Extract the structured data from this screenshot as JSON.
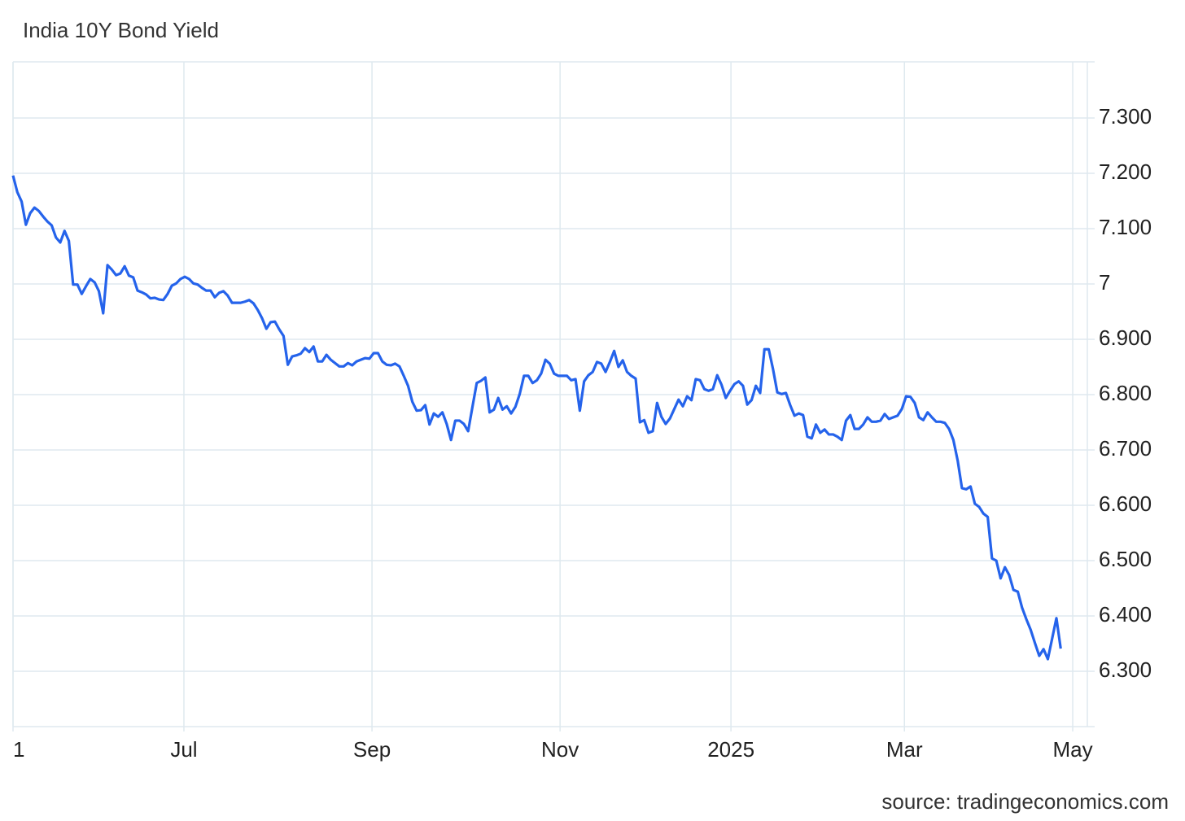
{
  "chart_data": {
    "type": "line",
    "title": "India 10Y Bond Yield",
    "source": "source: tradingeconomics.com",
    "color": "#2563eb",
    "grid": true,
    "y_axis_side": "right",
    "xlim": [
      0,
      250.2
    ],
    "xticks": [
      {
        "value": 0,
        "label": "1"
      },
      {
        "value": 39.8,
        "label": "Jul"
      },
      {
        "value": 83.6,
        "label": "Sep"
      },
      {
        "value": 127.4,
        "label": "Nov"
      },
      {
        "value": 167.2,
        "label": "2025"
      },
      {
        "value": 207.6,
        "label": "Mar"
      },
      {
        "value": 246.8,
        "label": "May"
      }
    ],
    "ylim": [
      6.2,
      7.4
    ],
    "yticks": [
      {
        "value": 6.3,
        "label": "6.300"
      },
      {
        "value": 6.4,
        "label": "6.400"
      },
      {
        "value": 6.5,
        "label": "6.500"
      },
      {
        "value": 6.6,
        "label": "6.600"
      },
      {
        "value": 6.7,
        "label": "6.700"
      },
      {
        "value": 6.8,
        "label": "6.800"
      },
      {
        "value": 6.9,
        "label": "6.900"
      },
      7,
      {
        "value": 7.1,
        "label": "7.100"
      },
      {
        "value": 7.2,
        "label": "7.200"
      },
      {
        "value": 7.3,
        "label": "7.300"
      }
    ],
    "values": [
      7.196,
      7.166,
      7.149,
      7.107,
      7.128,
      7.138,
      7.132,
      7.122,
      7.113,
      7.106,
      7.084,
      7.075,
      7.096,
      7.078,
      6.999,
      6.999,
      6.982,
      6.996,
      7.009,
      7.003,
      6.987,
      6.947,
      7.034,
      7.026,
      7.016,
      7.019,
      7.032,
      7.015,
      7.012,
      6.988,
      6.985,
      6.981,
      6.974,
      6.975,
      6.972,
      6.971,
      6.982,
      6.997,
      7.001,
      7.009,
      7.013,
      7.009,
      7.001,
      6.999,
      6.993,
      6.988,
      6.988,
      6.976,
      6.984,
      6.987,
      6.979,
      6.966,
      6.966,
      6.966,
      6.968,
      6.971,
      6.965,
      6.953,
      6.938,
      6.919,
      6.931,
      6.932,
      6.918,
      6.906,
      6.854,
      6.869,
      6.871,
      6.874,
      6.884,
      6.877,
      6.887,
      6.86,
      6.86,
      6.872,
      6.863,
      6.857,
      6.851,
      6.851,
      6.857,
      6.853,
      6.86,
      6.863,
      6.866,
      6.865,
      6.875,
      6.875,
      6.86,
      6.854,
      6.853,
      6.856,
      6.851,
      6.834,
      6.816,
      6.787,
      6.771,
      6.772,
      6.781,
      6.746,
      6.766,
      6.76,
      6.768,
      6.747,
      6.718,
      6.753,
      6.753,
      6.747,
      6.734,
      6.778,
      6.821,
      6.825,
      6.831,
      6.768,
      6.773,
      6.794,
      6.773,
      6.779,
      6.766,
      6.778,
      6.801,
      6.834,
      6.834,
      6.821,
      6.826,
      6.838,
      6.863,
      6.856,
      6.838,
      6.834,
      6.834,
      6.834,
      6.826,
      6.828,
      6.771,
      6.824,
      6.835,
      6.841,
      6.859,
      6.856,
      6.841,
      6.859,
      6.879,
      6.85,
      6.862,
      6.841,
      6.834,
      6.829,
      6.75,
      6.754,
      6.731,
      6.734,
      6.785,
      6.76,
      6.747,
      6.757,
      6.774,
      6.791,
      6.779,
      6.797,
      6.79,
      6.828,
      6.826,
      6.81,
      6.807,
      6.81,
      6.835,
      6.818,
      6.794,
      6.807,
      6.819,
      6.824,
      6.816,
      6.782,
      6.79,
      6.816,
      6.803,
      6.882,
      6.882,
      6.846,
      6.804,
      6.801,
      6.803,
      6.781,
      6.762,
      6.766,
      6.763,
      6.724,
      6.721,
      6.746,
      6.731,
      6.737,
      6.728,
      6.728,
      6.724,
      6.718,
      6.753,
      6.763,
      6.738,
      6.738,
      6.746,
      6.759,
      6.751,
      6.751,
      6.753,
      6.765,
      6.756,
      6.759,
      6.762,
      6.774,
      6.797,
      6.796,
      6.785,
      6.759,
      6.754,
      6.768,
      6.759,
      6.751,
      6.751,
      6.749,
      6.738,
      6.718,
      6.681,
      6.631,
      6.629,
      6.634,
      6.603,
      6.597,
      6.585,
      6.579,
      6.504,
      6.5,
      6.468,
      6.488,
      6.474,
      6.447,
      6.444,
      6.415,
      6.394,
      6.375,
      6.351,
      6.328,
      6.34,
      6.322,
      6.359,
      6.396,
      6.341
    ]
  }
}
